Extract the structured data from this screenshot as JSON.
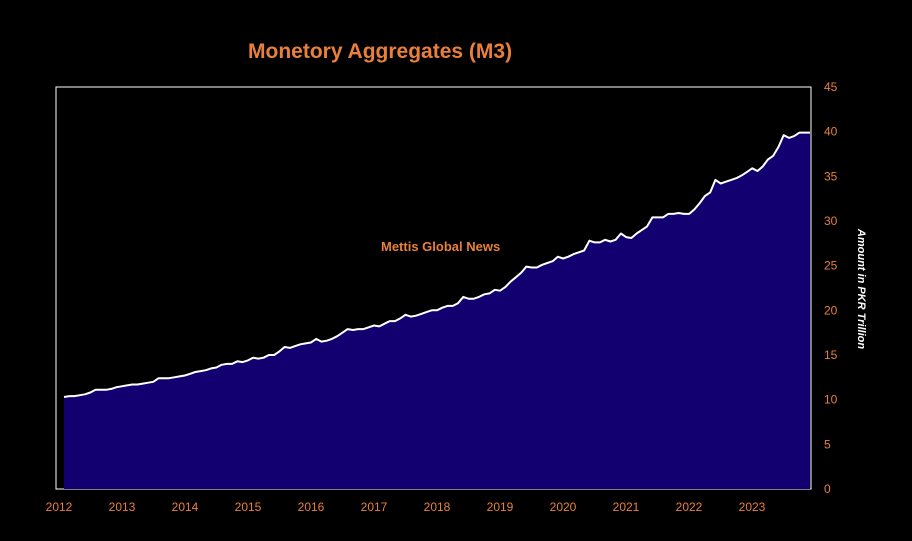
{
  "chart_data": {
    "type": "area",
    "title": "Monetory Aggregates (M3)",
    "watermark": "Mettis Global News",
    "ylabel": "Amount in PKR Trillion",
    "xlabel": "",
    "ylim": [
      0,
      45
    ],
    "y_ticks": [
      "0",
      "5",
      "10",
      "15",
      "20",
      "25",
      "30",
      "35",
      "40",
      "45"
    ],
    "x_ticks": [
      "2012",
      "2013",
      "2014",
      "2015",
      "2016",
      "2017",
      "2018",
      "2019",
      "2020",
      "2021",
      "2022",
      "2023"
    ],
    "y_axis_position": "right",
    "grid": false,
    "legend": "none",
    "colors": {
      "fill": "#120070",
      "line": "#ffffff",
      "text": "#e8803a",
      "background": "#000000",
      "frame": "#ffffff"
    },
    "series": [
      {
        "x_start": "2012-01",
        "frequency": "monthly",
        "values": [
          10.3,
          10.4,
          10.4,
          10.5,
          10.6,
          10.8,
          11.1,
          11.1,
          11.1,
          11.2,
          11.4,
          11.5,
          11.6,
          11.7,
          11.7,
          11.8,
          11.9,
          12.0,
          12.4,
          12.4,
          12.4,
          12.5,
          12.6,
          12.7,
          12.9,
          13.1,
          13.2,
          13.3,
          13.5,
          13.6,
          13.9,
          14.0,
          14.0,
          14.3,
          14.2,
          14.4,
          14.7,
          14.6,
          14.7,
          15.0,
          15.0,
          15.4,
          15.9,
          15.8,
          16.0,
          16.2,
          16.3,
          16.4,
          16.8,
          16.5,
          16.6,
          16.8,
          17.1,
          17.5,
          17.9,
          17.8,
          17.9,
          17.9,
          18.1,
          18.3,
          18.2,
          18.5,
          18.8,
          18.8,
          19.1,
          19.5,
          19.3,
          19.4,
          19.6,
          19.8,
          20.0,
          20.0,
          20.3,
          20.5,
          20.5,
          20.8,
          21.5,
          21.3,
          21.3,
          21.5,
          21.8,
          21.9,
          22.3,
          22.2,
          22.6,
          23.2,
          23.7,
          24.2,
          24.9,
          24.8,
          24.8,
          25.1,
          25.3,
          25.5,
          26.0,
          25.8,
          26.0,
          26.3,
          26.5,
          26.7,
          27.8,
          27.6,
          27.6,
          27.9,
          27.7,
          27.9,
          28.6,
          28.2,
          28.1,
          28.6,
          29.0,
          29.4,
          30.4,
          30.4,
          30.4,
          30.8,
          30.8,
          30.9,
          30.8,
          30.8,
          31.3,
          32.0,
          32.8,
          33.2,
          34.6,
          34.2,
          34.4,
          34.6,
          34.8,
          35.1,
          35.5,
          35.9,
          35.6,
          36.1,
          36.9,
          37.3,
          38.3,
          39.6,
          39.3,
          39.5,
          39.9,
          39.9,
          39.9
        ]
      }
    ]
  }
}
